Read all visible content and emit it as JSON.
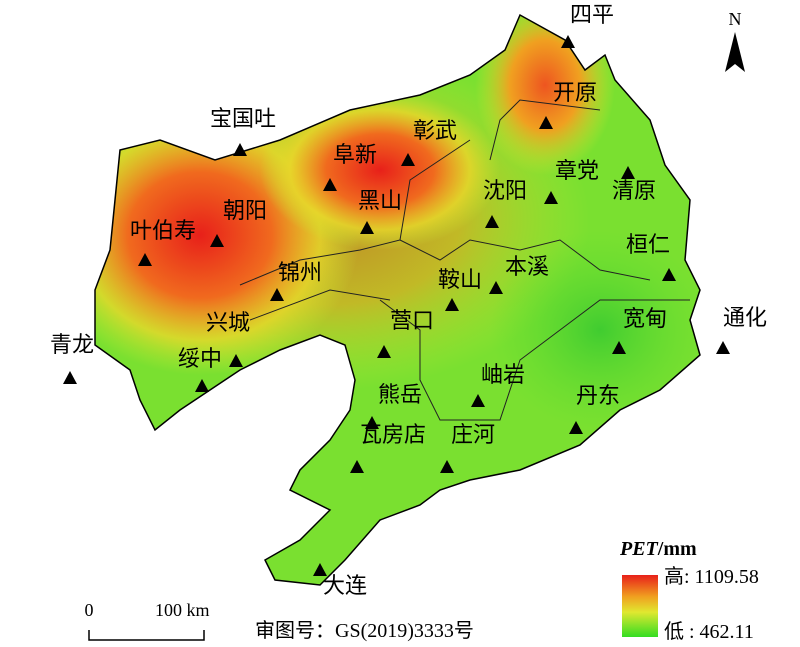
{
  "north": "N",
  "stations": [
    "四平",
    "开原",
    "彰武",
    "阜新",
    "宝国吐",
    "朝阳",
    "叶伯寿",
    "黑山",
    "沈阳",
    "章党",
    "清原",
    "桓仁",
    "本溪",
    "鞍山",
    "锦州",
    "兴城",
    "绥中",
    "青龙",
    "营口",
    "宽甸",
    "通化",
    "岫岩",
    "熊岳",
    "丹东",
    "瓦房店",
    "庄河",
    "大连"
  ],
  "legend": {
    "title": "PET",
    "unit": "/mm",
    "high": "高: 1109.58",
    "low": "低 : 462.11"
  },
  "scale": {
    "zero": "0",
    "distance": "100 km"
  },
  "approval": "审图号：GS(2019)3333号"
}
